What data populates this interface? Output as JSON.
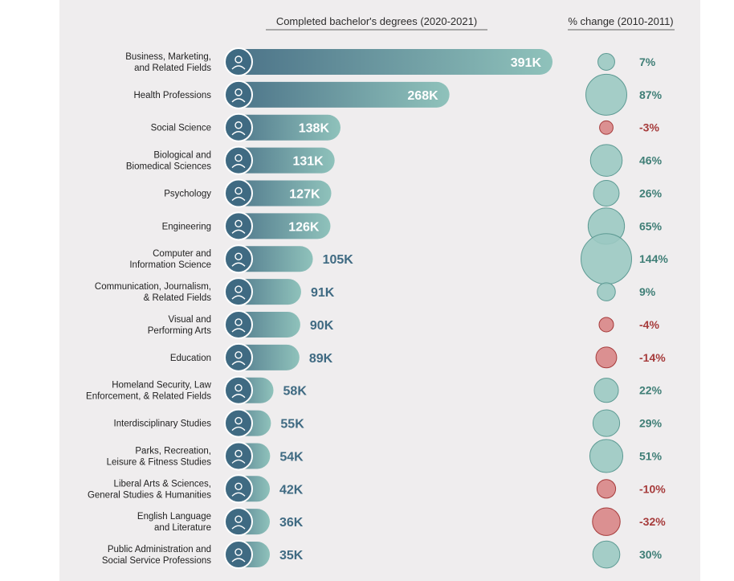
{
  "colors": {
    "panel_bg": "#efedee",
    "bar_dark": "#4a7187",
    "bar_light": "#8fc2bb",
    "icon_circle": "#3f6a82",
    "positive_fill": "#9bc9c2",
    "positive_stroke": "#5d9a93",
    "positive_text": "#3f7e76",
    "negative_fill": "#d98b8b",
    "negative_stroke": "#a63b3b",
    "negative_text": "#a63b3b",
    "value_text_light": "#ffffff",
    "value_text_dark": "#3f6a82"
  },
  "chart_data": {
    "type": "bar",
    "orientation": "horizontal",
    "headers": {
      "bars": "Completed bachelor's degrees (2020-2021)",
      "change": "% change (2010-2011)"
    },
    "categories": [
      [
        "Business, Marketing,",
        "and Related Fields"
      ],
      [
        "Health Professions"
      ],
      [
        "Social Science"
      ],
      [
        "Biological and",
        "Biomedical Sciences"
      ],
      [
        "Psychology"
      ],
      [
        "Engineering"
      ],
      [
        "Computer and",
        "Information Science"
      ],
      [
        "Communication, Journalism,",
        "& Related Fields"
      ],
      [
        "Visual and",
        "Performing Arts"
      ],
      [
        "Education"
      ],
      [
        "Homeland Security, Law",
        "Enforcement, & Related Fields"
      ],
      [
        "Interdisciplinary Studies"
      ],
      [
        "Parks, Recreation,",
        "Leisure & Fitness Studies"
      ],
      [
        "Liberal Arts & Sciences,",
        "General Studies & Humanities"
      ],
      [
        "English Language",
        "and Literature"
      ],
      [
        "Public Administration and",
        "Social Service Professions"
      ]
    ],
    "icons": [
      "handshake-icon",
      "doctor-icon",
      "book-icon",
      "shield-dna-icon",
      "head-puzzle-icon",
      "graduation-cap-icon",
      "computer-user-icon",
      "meeting-icon",
      "theater-masks-icon",
      "classroom-icon",
      "handcuffs-icon",
      "head-gears-icon",
      "dumbbell-icon",
      "palette-icon",
      "book-closed-icon",
      "headset-person-icon"
    ],
    "values": [
      391,
      268,
      138,
      131,
      127,
      126,
      105,
      91,
      90,
      89,
      58,
      55,
      54,
      42,
      36,
      35
    ],
    "value_labels": [
      "391K",
      "268K",
      "138K",
      "131K",
      "127K",
      "126K",
      "105K",
      "91K",
      "90K",
      "89K",
      "58K",
      "55K",
      "54K",
      "42K",
      "36K",
      "35K"
    ],
    "pct_change": [
      7,
      87,
      -3,
      46,
      26,
      65,
      144,
      9,
      -4,
      -14,
      22,
      29,
      51,
      -10,
      -32,
      30
    ],
    "pct_labels": [
      "7%",
      "87%",
      "-3%",
      "46%",
      "26%",
      "65%",
      "144%",
      "9%",
      "-4%",
      "-14%",
      "22%",
      "29%",
      "51%",
      "-10%",
      "-32%",
      "30%"
    ]
  }
}
